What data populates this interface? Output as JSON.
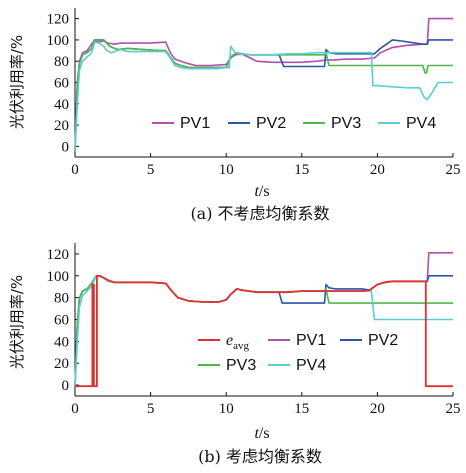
{
  "chart_data": [
    {
      "type": "line",
      "panel": "a",
      "caption": "(a) 不考虑均衡系数",
      "xlabel": "t/s",
      "ylabel": "光伏利用率/%",
      "xlim": [
        0,
        25
      ],
      "ylim": [
        -10,
        130
      ],
      "xticks": [
        0,
        5,
        10,
        15,
        20,
        25
      ],
      "yticks": [
        0,
        20,
        40,
        60,
        80,
        100,
        120
      ],
      "legend_position": "bottom-right",
      "series": [
        {
          "name": "PV1",
          "color": "#b04fb0",
          "x": [
            0,
            0.15,
            0.3,
            0.5,
            0.8,
            1.1,
            1.3,
            1.5,
            1.9,
            2.2,
            2.6,
            3,
            4,
            5,
            6,
            6.3,
            6.6,
            7,
            7.4,
            8,
            9,
            10,
            10.3,
            10.6,
            11,
            11.6,
            12,
            13,
            14,
            15,
            16,
            16.6,
            17,
            18,
            19,
            19.8,
            20.2,
            21,
            22,
            23,
            23.3,
            23.4,
            25
          ],
          "y": [
            -5,
            60,
            80,
            88,
            90,
            96,
            100,
            98,
            99,
            97,
            96,
            97,
            97,
            97,
            98,
            88,
            82,
            80,
            78,
            76,
            76,
            77,
            83,
            86,
            87,
            83,
            80,
            79,
            79,
            79,
            80,
            81,
            81,
            82,
            82,
            83,
            88,
            93,
            95,
            96,
            96,
            120,
            120
          ]
        },
        {
          "name": "PV2",
          "color": "#2b57a6",
          "x": [
            0,
            0.15,
            0.3,
            0.5,
            0.8,
            1.1,
            1.3,
            1.6,
            1.9,
            2.3,
            2.8,
            3.5,
            4.5,
            5.5,
            6,
            6.3,
            6.6,
            7,
            7.6,
            8.4,
            9.4,
            10,
            10.3,
            10.7,
            11,
            11.6,
            12.5,
            13.5,
            13.8,
            15,
            16,
            16.5,
            16.6,
            16.8,
            17.3,
            19,
            19.8,
            20.2,
            20.6,
            21,
            21.6,
            22.5,
            23,
            23.3,
            23.4,
            25
          ],
          "y": [
            -5,
            55,
            78,
            86,
            88,
            92,
            100,
            100,
            100,
            94,
            91,
            92,
            91,
            90,
            90,
            84,
            78,
            76,
            74,
            74,
            74,
            74,
            84,
            88,
            87,
            86,
            86,
            86,
            75,
            75,
            75,
            75,
            91,
            88,
            87,
            87,
            87,
            92,
            96,
            100,
            99,
            97,
            96,
            96,
            100,
            100
          ]
        },
        {
          "name": "PV3",
          "color": "#4fb84a",
          "x": [
            0,
            0.15,
            0.3,
            0.5,
            0.8,
            1.1,
            1.3,
            1.6,
            1.9,
            2.3,
            2.8,
            3.5,
            4.5,
            5.5,
            6,
            6.3,
            6.6,
            7,
            7.6,
            8.4,
            9.4,
            10,
            10.3,
            10.7,
            11,
            11.6,
            12.5,
            13.5,
            15,
            16,
            16.5,
            16.6,
            16.8,
            19,
            20,
            21,
            22,
            23,
            23.15,
            23.25,
            23.35,
            25
          ],
          "y": [
            -5,
            55,
            78,
            86,
            88,
            92,
            100,
            100,
            100,
            94,
            91,
            92,
            91,
            90,
            90,
            84,
            78,
            76,
            74,
            74,
            74,
            74,
            84,
            88,
            87,
            86,
            86,
            86,
            86,
            86,
            86,
            88,
            76,
            76,
            76,
            76,
            76,
            76,
            69,
            69,
            76,
            76
          ]
        },
        {
          "name": "PV4",
          "color": "#5ccbd4",
          "x": [
            0,
            0.15,
            0.3,
            0.5,
            0.8,
            1.1,
            1.3,
            1.6,
            1.9,
            2.1,
            2.4,
            3,
            3.5,
            4.5,
            5.5,
            6,
            6.3,
            6.6,
            7,
            7.6,
            8.4,
            9.4,
            10,
            10.2,
            10.3,
            10.6,
            11,
            11.5,
            12,
            13,
            14,
            15,
            16,
            17,
            18,
            19,
            19.6,
            19.7,
            20,
            21,
            22,
            22.8,
            23.1,
            23.3,
            23.6,
            24,
            25
          ],
          "y": [
            -5,
            40,
            72,
            80,
            84,
            88,
            98,
            97,
            94,
            90,
            88,
            91,
            89,
            89,
            89,
            89,
            83,
            76,
            74,
            73,
            73,
            73,
            74,
            74,
            94,
            88,
            87,
            86,
            86,
            86,
            87,
            87,
            88,
            88,
            88,
            88,
            88,
            57,
            57,
            56,
            55,
            55,
            46,
            44,
            50,
            60,
            60
          ]
        }
      ]
    },
    {
      "type": "line",
      "panel": "b",
      "caption": "(b) 考虑均衡系数",
      "xlabel": "t/s",
      "ylabel": "光伏利用率/%",
      "xlim": [
        0,
        25
      ],
      "ylim": [
        -10,
        130
      ],
      "xticks": [
        0,
        5,
        10,
        15,
        20,
        25
      ],
      "yticks": [
        0,
        20,
        40,
        60,
        80,
        100,
        120
      ],
      "legend_position": "bottom-right",
      "series": [
        {
          "name": "PV1",
          "color": "#b04fb0",
          "x": [
            0,
            0.15,
            0.3,
            0.5,
            0.8,
            1.1,
            1.4,
            1.6,
            1.9,
            2.2,
            2.6,
            3,
            4,
            5,
            6,
            6.4,
            6.8,
            7.5,
            8.5,
            9.5,
            10,
            10.3,
            10.7,
            11,
            11.5,
            12,
            13,
            14,
            15,
            16,
            17,
            18,
            19,
            19.5,
            20,
            20.5,
            21,
            22,
            23,
            23.3,
            23.4,
            25
          ],
          "y": [
            -2,
            55,
            80,
            86,
            88,
            93,
            100,
            100,
            98,
            95,
            94,
            94,
            94,
            94,
            93,
            86,
            80,
            77,
            76,
            76,
            78,
            83,
            88,
            87,
            86,
            85,
            85,
            85,
            86,
            86,
            86,
            86,
            86,
            87,
            92,
            94,
            95,
            95,
            95,
            95,
            121,
            121
          ]
        },
        {
          "name": "PV2",
          "color": "#2b57a6",
          "x": [
            0,
            0.15,
            0.3,
            0.5,
            0.8,
            1.1,
            1.4,
            1.6,
            1.9,
            2.2,
            2.6,
            3,
            4,
            5,
            6,
            6.4,
            6.8,
            7.5,
            8.5,
            9.5,
            10,
            10.3,
            10.7,
            11,
            11.5,
            12,
            13,
            13.5,
            13.7,
            15,
            16,
            16.5,
            16.6,
            16.8,
            17.2,
            19,
            19.5,
            20,
            20.5,
            21,
            22,
            23,
            23.3,
            23.4,
            25
          ],
          "y": [
            -2,
            55,
            80,
            86,
            88,
            93,
            100,
            100,
            98,
            95,
            94,
            94,
            94,
            94,
            93,
            86,
            80,
            77,
            76,
            76,
            78,
            83,
            88,
            87,
            86,
            85,
            85,
            85,
            75,
            75,
            75,
            75,
            92,
            89,
            88,
            88,
            87,
            92,
            94,
            95,
            95,
            95,
            95,
            100,
            100
          ]
        },
        {
          "name": "PV3",
          "color": "#4fb84a",
          "x": [
            0,
            0.15,
            0.3,
            0.5,
            0.8,
            1.1,
            1.4,
            1.6,
            1.9,
            2.2,
            2.6,
            3,
            4,
            5,
            6,
            6.4,
            6.8,
            7.5,
            8.5,
            9.5,
            10,
            10.3,
            10.7,
            11,
            11.5,
            12,
            13,
            14,
            15,
            16,
            16.5,
            16.6,
            16.8,
            19,
            20,
            21,
            22,
            23,
            24,
            25
          ],
          "y": [
            -2,
            55,
            80,
            86,
            88,
            93,
            100,
            100,
            98,
            95,
            94,
            94,
            94,
            94,
            93,
            86,
            80,
            77,
            76,
            76,
            78,
            83,
            88,
            87,
            86,
            85,
            85,
            85,
            86,
            86,
            86,
            88,
            75,
            75,
            75,
            75,
            75,
            75,
            75,
            75
          ]
        },
        {
          "name": "PV4",
          "color": "#5ccbd4",
          "x": [
            0,
            0.15,
            0.3,
            0.5,
            0.8,
            1.1,
            1.4,
            1.6,
            1.9,
            2.2,
            2.6,
            3,
            4,
            5,
            6,
            6.4,
            6.8,
            7.5,
            8.5,
            9.5,
            10,
            10.3,
            10.7,
            11,
            11.5,
            12,
            13,
            14,
            15,
            16,
            17,
            18,
            19,
            19.6,
            19.8,
            20,
            21,
            22,
            23,
            24,
            25
          ],
          "y": [
            -2,
            40,
            72,
            82,
            86,
            90,
            100,
            100,
            98,
            95,
            94,
            94,
            94,
            94,
            93,
            86,
            80,
            77,
            76,
            76,
            78,
            83,
            88,
            87,
            86,
            85,
            85,
            85,
            86,
            86,
            86,
            86,
            86,
            86,
            60,
            60,
            60,
            60,
            60,
            60,
            60
          ]
        },
        {
          "name": "e_avg",
          "color": "#e03030",
          "x": [
            0,
            1.15,
            1.15,
            1.25,
            1.25,
            1.45,
            1.45,
            1.65,
            1.65,
            2.2,
            2.6,
            3,
            4,
            5,
            6,
            6.4,
            6.8,
            7.5,
            8.5,
            9.5,
            10,
            10.3,
            10.7,
            11,
            11.5,
            12,
            13,
            14,
            15,
            16,
            17,
            18,
            19,
            19.5,
            20,
            20.5,
            21,
            22,
            23,
            23.2,
            23.2,
            25
          ],
          "y": [
            -1,
            -1,
            92,
            92,
            -1,
            -1,
            100,
            100,
            100,
            96,
            94,
            94,
            94,
            94,
            93,
            86,
            80,
            77,
            76,
            76,
            78,
            83,
            88,
            87,
            86,
            85,
            85,
            85,
            86,
            86,
            86,
            86,
            86,
            87,
            92,
            94,
            95,
            95,
            95,
            95,
            -1,
            -1
          ]
        }
      ]
    }
  ],
  "legend_b_first": {
    "base": "e",
    "sub": "avg"
  }
}
